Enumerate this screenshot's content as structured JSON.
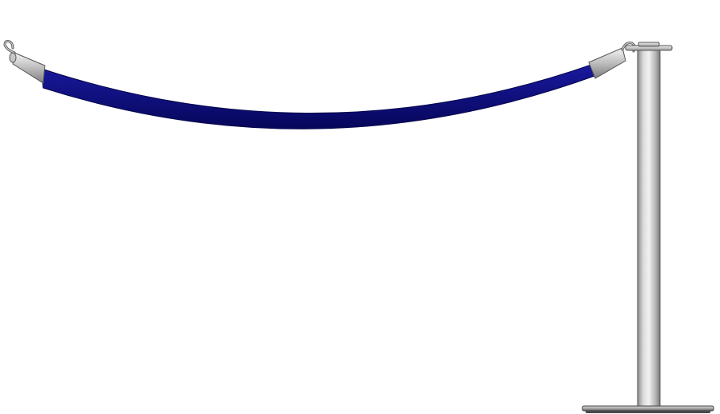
{
  "scene": {
    "subject": "rope-barrier-stanchion",
    "colors": {
      "background": "#ffffff",
      "rope": "#12128a",
      "rope_shadow": "#07075a",
      "metal_light": "#e6e6e6",
      "metal_mid": "#b4b4b4",
      "metal_dark": "#7d7d7d",
      "outline": "#444444"
    },
    "icons": {
      "rope": "velvet-rope-icon",
      "left_hook": "snap-hook-icon",
      "post": "stanchion-post-icon",
      "base": "stanchion-base-icon"
    }
  }
}
